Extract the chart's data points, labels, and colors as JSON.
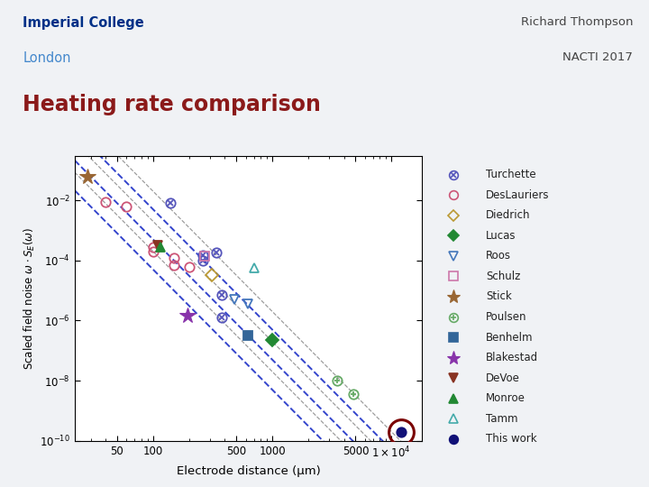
{
  "title": "Heating rate comparison",
  "header_left": [
    "Imperial College",
    "London"
  ],
  "header_right": [
    "Richard Thompson",
    "NACTI 2017"
  ],
  "xlabel": "Electrode distance (μm)",
  "ylabel": "Scaled field noise ω·S_E(ω)",
  "xlim": [
    22,
    18000
  ],
  "ylim": [
    1e-10,
    0.3
  ],
  "bg_color": "#f0f2f5",
  "plot_bg_color": "#ffffff",
  "title_color": "#8b1a1a",
  "header_left_bold_color": "#003087",
  "header_left_plain_color": "#4488cc",
  "header_right_color": "#444444",
  "separator_color": "#bbbbbb",
  "blue_lines": [
    [
      100,
      0.005
    ],
    [
      100,
      0.0005
    ],
    [
      100,
      5e-05
    ]
  ],
  "gray_lines": [
    [
      100,
      0.02
    ],
    [
      100,
      0.002
    ],
    [
      100,
      0.0002
    ]
  ],
  "datasets": [
    {
      "name": "Turchette",
      "marker": "x_circle",
      "color": "#5555bb",
      "mfc": "none",
      "points": [
        [
          140,
          0.008
        ],
        [
          260,
          0.00015
        ],
        [
          260,
          0.0001
        ],
        [
          340,
          0.00018
        ],
        [
          380,
          7e-06
        ],
        [
          380,
          1.3e-06
        ]
      ]
    },
    {
      "name": "DesLauriers",
      "marker": "o",
      "color": "#cc5577",
      "mfc": "none",
      "points": [
        [
          40,
          0.009
        ],
        [
          60,
          0.006
        ],
        [
          100,
          0.00028
        ],
        [
          100,
          0.00019
        ],
        [
          150,
          0.00012
        ],
        [
          150,
          7e-05
        ],
        [
          200,
          6e-05
        ]
      ]
    },
    {
      "name": "Diedrich",
      "marker": "D",
      "color": "#bb9933",
      "mfc": "none",
      "points": [
        [
          310,
          3.2e-05
        ]
      ]
    },
    {
      "name": "Lucas",
      "marker": "D",
      "color": "#228833",
      "mfc": "#228833",
      "points": [
        [
          1000,
          2.2e-07
        ]
      ]
    },
    {
      "name": "Roos",
      "marker": "v",
      "color": "#4477bb",
      "mfc": "none",
      "points": [
        [
          480,
          5e-06
        ],
        [
          620,
          3.5e-06
        ]
      ]
    },
    {
      "name": "Schulz",
      "marker": "s",
      "color": "#cc77aa",
      "mfc": "none",
      "points": [
        [
          270,
          0.00014
        ]
      ]
    },
    {
      "name": "Stick",
      "marker": "*",
      "color": "#996633",
      "mfc": "#996633",
      "points": [
        [
          28,
          0.06
        ]
      ]
    },
    {
      "name": "Poulsen",
      "marker": "plus_circle",
      "color": "#66aa66",
      "mfc": "none",
      "points": [
        [
          3500,
          1e-08
        ],
        [
          4800,
          3.5e-09
        ]
      ]
    },
    {
      "name": "Benhelm",
      "marker": "s",
      "color": "#336699",
      "mfc": "#336699",
      "points": [
        [
          620,
          3.2e-07
        ]
      ]
    },
    {
      "name": "Blakestad",
      "marker": "*",
      "color": "#8833aa",
      "mfc": "#8833aa",
      "points": [
        [
          195,
          1.4e-06
        ]
      ]
    },
    {
      "name": "DeVoe",
      "marker": "v",
      "color": "#883322",
      "mfc": "#883322",
      "points": [
        [
          110,
          0.00032
        ]
      ]
    },
    {
      "name": "Monroe",
      "marker": "^",
      "color": "#228833",
      "mfc": "#228833",
      "points": [
        [
          115,
          0.00028
        ]
      ]
    },
    {
      "name": "Tamm",
      "marker": "^",
      "color": "#44aaaa",
      "mfc": "none",
      "points": [
        [
          700,
          5.5e-05
        ]
      ]
    },
    {
      "name": "This work",
      "marker": "o",
      "color": "#111177",
      "mfc": "#111177",
      "circle_highlight": true,
      "points": [
        [
          12000,
          2e-10
        ]
      ]
    }
  ],
  "legend_entries": [
    [
      "Turchette",
      "x_circle",
      "#5555bb",
      "none"
    ],
    [
      "DesLauriers",
      "o",
      "#cc5577",
      "none"
    ],
    [
      "Diedrich",
      "D",
      "#bb9933",
      "none"
    ],
    [
      "Lucas",
      "D",
      "#228833",
      "#228833"
    ],
    [
      "Roos",
      "v",
      "#4477bb",
      "none"
    ],
    [
      "Schulz",
      "s",
      "#cc77aa",
      "none"
    ],
    [
      "Stick",
      "*",
      "#996633",
      "#996633"
    ],
    [
      "Poulsen",
      "plus_circle",
      "#66aa66",
      "none"
    ],
    [
      "Benhelm",
      "s",
      "#336699",
      "#336699"
    ],
    [
      "Blakestad",
      "*",
      "#8833aa",
      "#8833aa"
    ],
    [
      "DeVoe",
      "v",
      "#883322",
      "#883322"
    ],
    [
      "Monroe",
      "^",
      "#228833",
      "#228833"
    ],
    [
      "Tamm",
      "^",
      "#44aaaa",
      "none"
    ],
    [
      "This work",
      "o",
      "#111177",
      "#111177"
    ]
  ]
}
